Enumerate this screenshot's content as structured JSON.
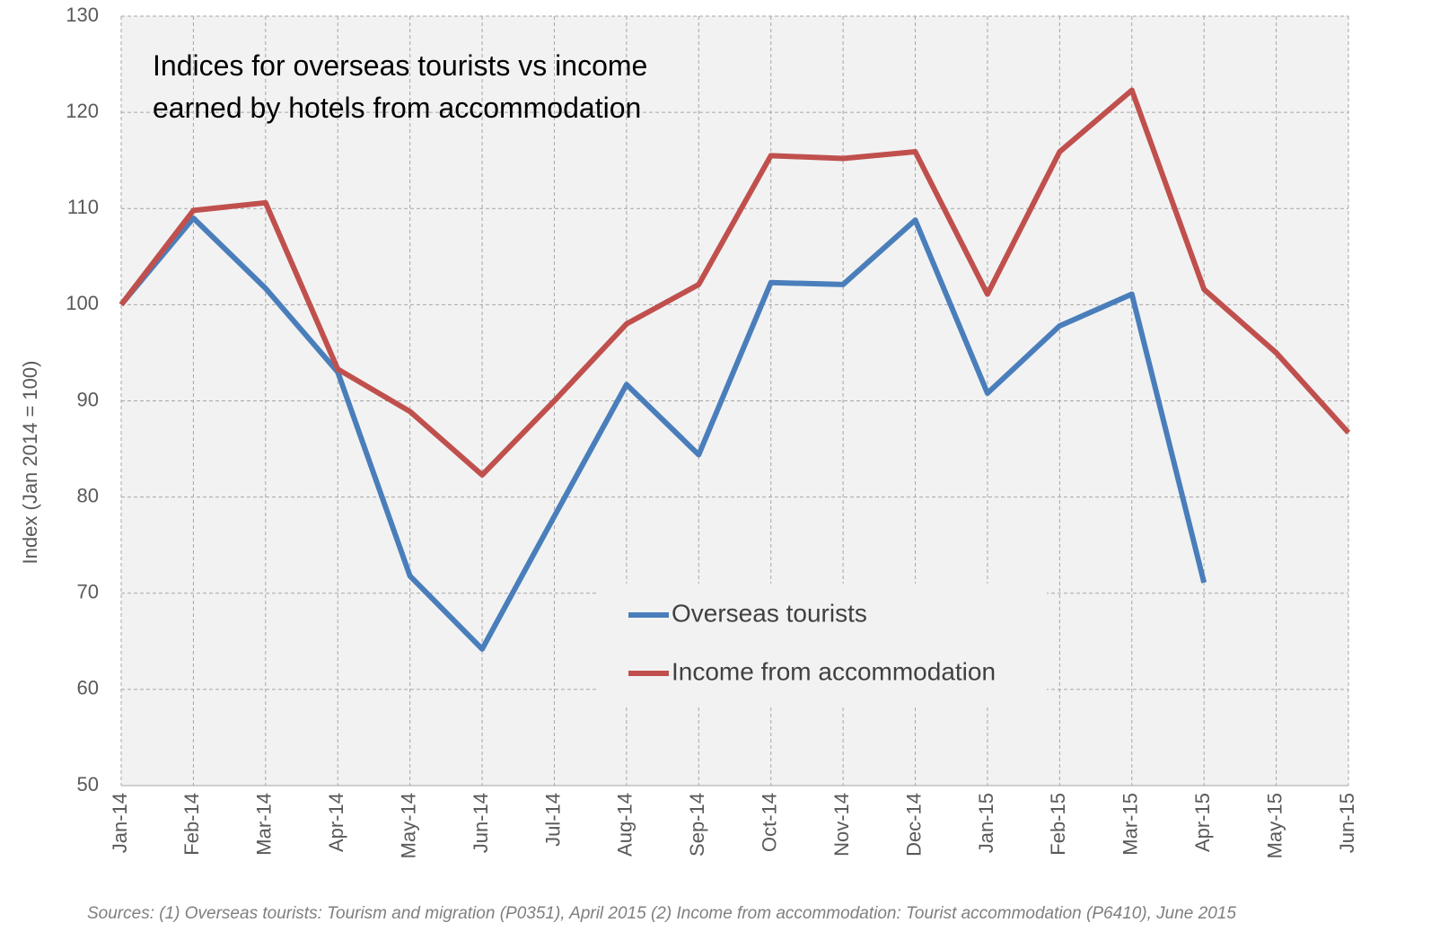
{
  "chart_data": {
    "type": "line",
    "title": "Indices for overseas tourists vs income earned by hotels from accommodation",
    "y_label": "Index (Jan 2014 = 100)",
    "source": "Sources: (1) Overseas tourists: Tourism and migration (P0351), April 2015   (2) Income from accommodation: Tourist accommodation (P6410), June 2015",
    "categories": [
      "Jan-14",
      "Feb-14",
      "Mar-14",
      "Apr-14",
      "May-14",
      "Jun-14",
      "Jul-14",
      "Aug-14",
      "Sep-14",
      "Oct-14",
      "Nov-14",
      "Dec-14",
      "Jan-15",
      "Feb-15",
      "Mar-15",
      "Apr-15",
      "May-15",
      "Jun-15"
    ],
    "series": [
      {
        "name": "Overseas tourists",
        "color": "#4a7ebb",
        "values": [
          100,
          109,
          101.7,
          93,
          71.8,
          64.2,
          78,
          91.7,
          84.4,
          102.3,
          102.1,
          108.8,
          90.8,
          97.8,
          101.1,
          71.1,
          null,
          null
        ]
      },
      {
        "name": "Income from accommodation",
        "color": "#c0504d",
        "values": [
          100,
          109.8,
          110.6,
          93.3,
          88.9,
          82.3,
          90,
          98,
          102.1,
          115.5,
          115.2,
          115.9,
          101.1,
          115.9,
          122.3,
          101.6,
          95,
          86.7
        ]
      }
    ],
    "ylim": [
      50,
      130
    ],
    "yticks": [
      50,
      60,
      70,
      80,
      90,
      100,
      110,
      120,
      130
    ],
    "grid": true
  }
}
